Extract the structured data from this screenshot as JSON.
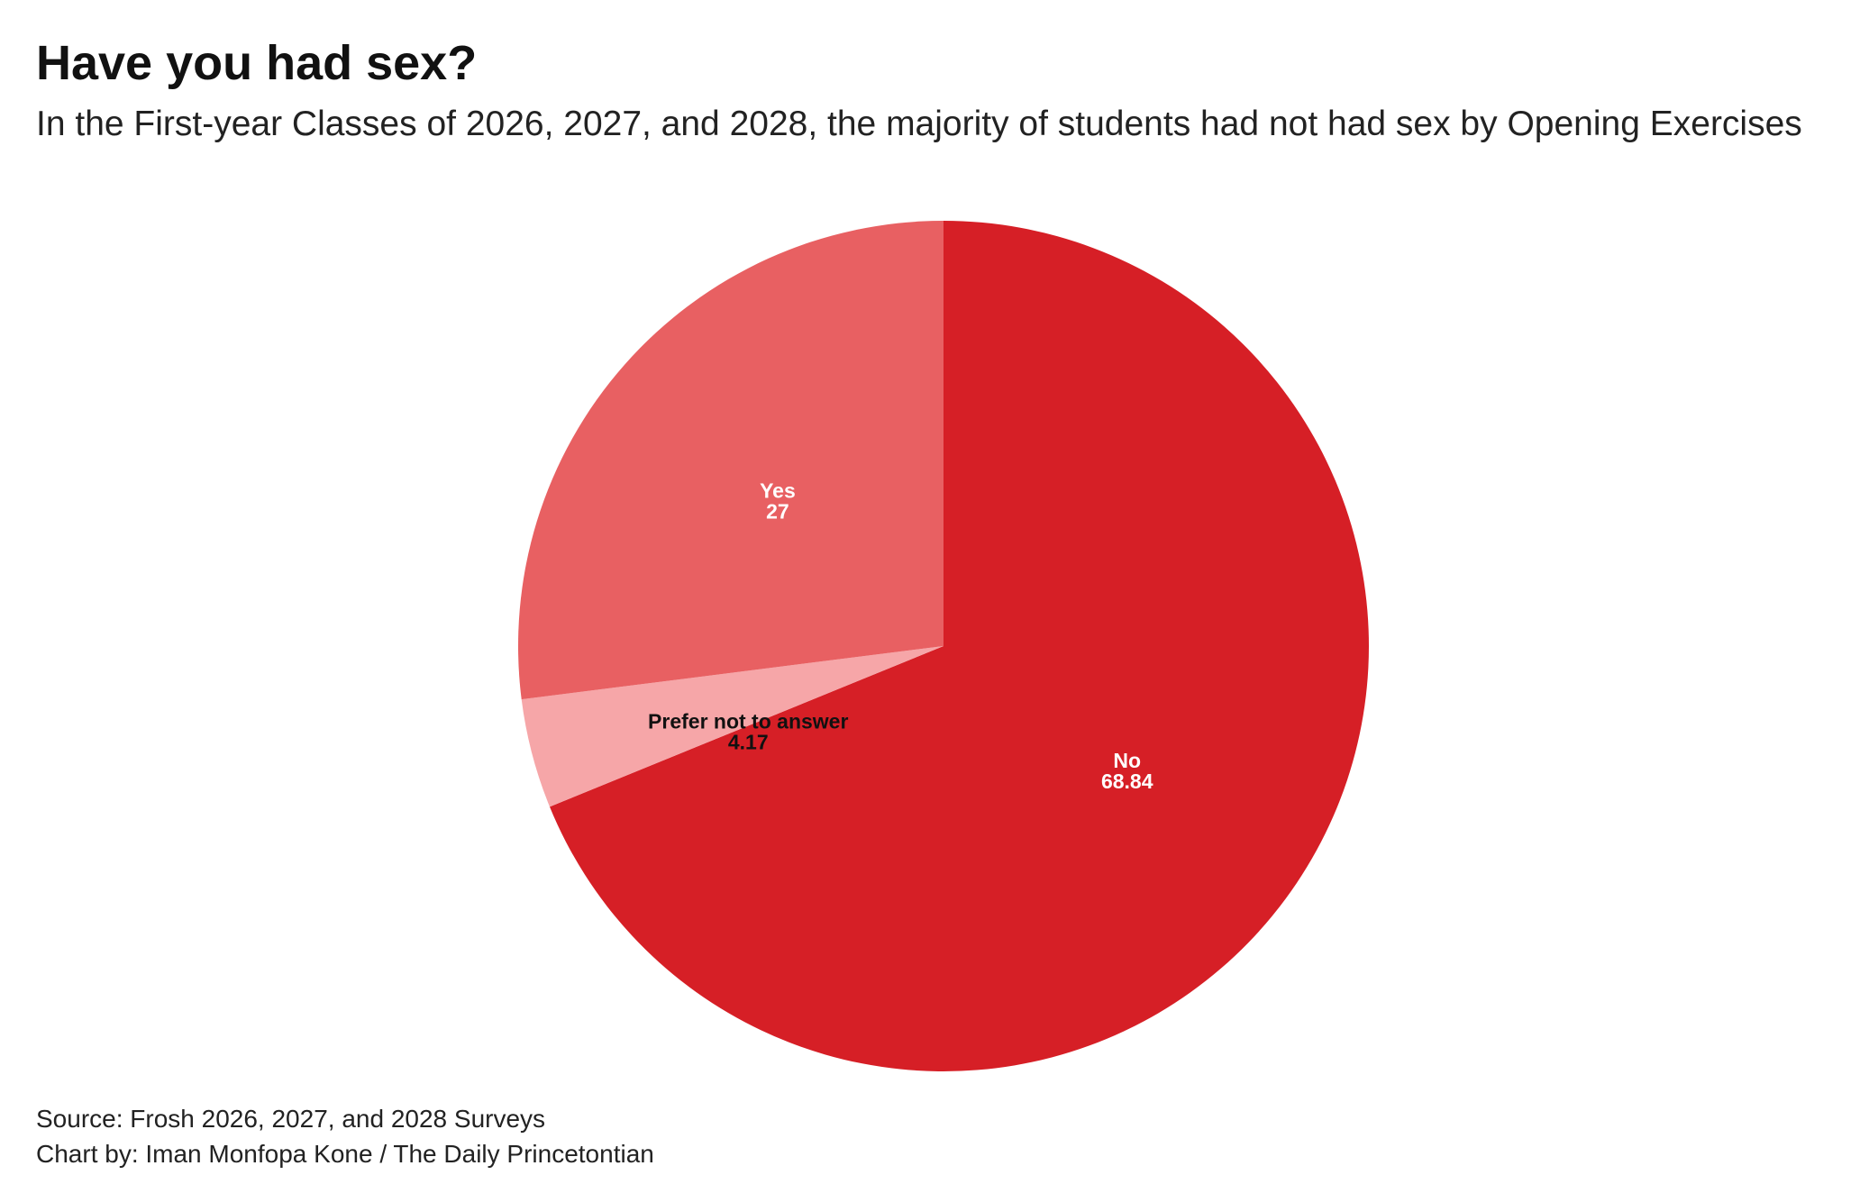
{
  "title": "Have you had sex?",
  "subtitle": "In the First-year Classes of 2026, 2027, and 2028, the majority of students had not had sex by Opening Exercises",
  "footer": {
    "source": "Source: Frosh 2026, 2027, and 2028 Surveys",
    "credit": "Chart by: Iman Monfopa Kone / The Daily Princetontian"
  },
  "chart_data": {
    "type": "pie",
    "title": "Have you had sex?",
    "slices": [
      {
        "label": "No",
        "value": 68.84,
        "display": "68.84",
        "color": "#d61f26",
        "text_color": "#ffffff"
      },
      {
        "label": "Prefer not to answer",
        "value": 4.17,
        "display": "4.17",
        "color": "#f6a6a8",
        "text_color": "#111111"
      },
      {
        "label": "Yes",
        "value": 27,
        "display": "27",
        "color": "#e86062",
        "text_color": "#ffffff"
      }
    ],
    "start": "12 o'clock",
    "direction": "clockwise",
    "legend": "none",
    "labels": "inside slices"
  }
}
